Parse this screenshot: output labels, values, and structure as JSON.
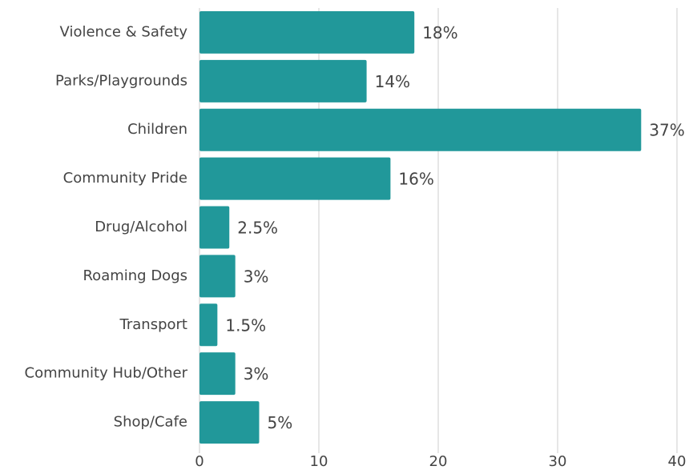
{
  "chart_data": {
    "type": "bar",
    "orientation": "horizontal",
    "categories": [
      "Violence & Safety",
      "Parks/Playgrounds",
      "Children",
      "Community Pride",
      "Drug/Alcohol",
      "Roaming Dogs",
      "Transport",
      "Community Hub/Other",
      "Shop/Cafe"
    ],
    "values": [
      18,
      14,
      37,
      16,
      2.5,
      3,
      1.5,
      3,
      5
    ],
    "value_labels": [
      "18%",
      "14%",
      "37%",
      "16%",
      "2.5%",
      "3%",
      "1.5%",
      "3%",
      "5%"
    ],
    "color": "#21989a",
    "xlim": [
      0,
      40
    ],
    "xticks": [
      0,
      10,
      20,
      30,
      40
    ],
    "grid": true
  }
}
